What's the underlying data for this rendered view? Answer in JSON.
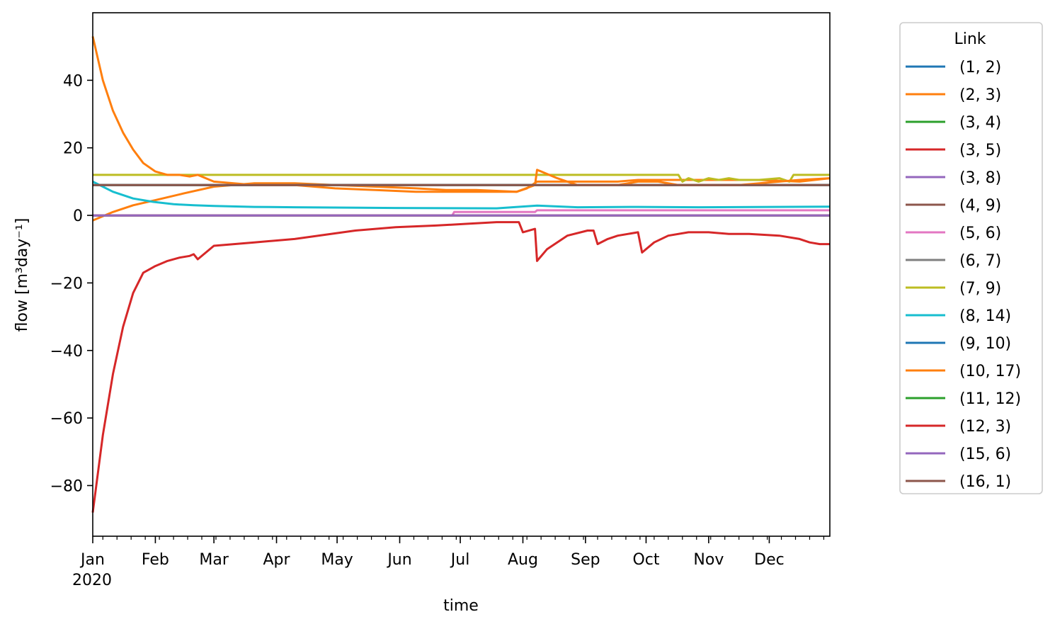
{
  "chart_data": {
    "type": "line",
    "title": "",
    "xlabel": "time",
    "ylabel": "flow [m³day⁻¹]",
    "xlim": [
      0,
      365
    ],
    "ylim": [
      -95,
      60
    ],
    "yticks": [
      40,
      20,
      0,
      -20,
      -40,
      -60,
      -80
    ],
    "ytick_labels": [
      "40",
      "20",
      "0",
      "−20",
      "−40",
      "−60",
      "−80"
    ],
    "xticks": [
      0,
      31,
      60,
      91,
      121,
      152,
      182,
      213,
      244,
      274,
      305,
      335
    ],
    "xtick_labels": [
      "Jan",
      "Feb",
      "Mar",
      "Apr",
      "May",
      "Jun",
      "Jul",
      "Aug",
      "Sep",
      "Oct",
      "Nov",
      "Dec"
    ],
    "x_year_label": "2020",
    "legend": {
      "title": "Link",
      "placement": "right-outside"
    },
    "series": [
      {
        "name": "(1, 2)",
        "color": "#1f77b4",
        "x": [
          0,
          365
        ],
        "y": [
          0,
          0
        ]
      },
      {
        "name": "(2, 3)",
        "color": "#ff7f0e",
        "x": [
          0,
          10,
          20,
          31,
          45,
          60,
          80,
          100,
          120,
          140,
          160,
          175,
          190,
          210,
          215,
          220,
          240,
          260,
          270,
          280,
          290,
          300,
          330,
          350,
          365
        ],
        "y": [
          -1.5,
          1,
          3,
          4.5,
          6.5,
          8.5,
          9.5,
          9.5,
          9,
          8.5,
          8,
          7.5,
          7.5,
          7,
          8,
          10,
          10,
          10,
          10.5,
          10.5,
          10.5,
          10.5,
          10.5,
          10,
          11
        ]
      },
      {
        "name": "(3, 4)",
        "color": "#2ca02c",
        "x": [
          0,
          365
        ],
        "y": [
          9,
          9
        ]
      },
      {
        "name": "(3, 5)",
        "color": "#d62728",
        "x": [
          0,
          5,
          10,
          15,
          20,
          25,
          31,
          37,
          43,
          48,
          50,
          52,
          60,
          80,
          100,
          130,
          150,
          170,
          185,
          200,
          211,
          213,
          219,
          220,
          225,
          235,
          245,
          248,
          250,
          255,
          260,
          270,
          272,
          274,
          278,
          285,
          295,
          305,
          315,
          325,
          340,
          350,
          355,
          360,
          365
        ],
        "y": [
          -88,
          -65,
          -47,
          -33,
          -23,
          -17,
          -15,
          -13.5,
          -12.5,
          -12,
          -11.5,
          -13,
          -9,
          -8,
          -7,
          -4.5,
          -3.5,
          -3,
          -2.5,
          -2,
          -2,
          -5,
          -4,
          -13.5,
          -10,
          -6,
          -4.5,
          -4.5,
          -8.5,
          -7,
          -6,
          -5,
          -11,
          -10,
          -8,
          -6,
          -5,
          -5,
          -5.5,
          -5.5,
          -6,
          -7,
          -8,
          -8.5,
          -8.5
        ]
      },
      {
        "name": "(3, 8)",
        "color": "#9467bd",
        "x": [
          0,
          365
        ],
        "y": [
          0,
          0
        ]
      },
      {
        "name": "(4, 9)",
        "color": "#8c564b",
        "x": [
          0,
          365
        ],
        "y": [
          9,
          9
        ]
      },
      {
        "name": "(5, 6)",
        "color": "#e377c2",
        "x": [
          0,
          178,
          179,
          219,
          220,
          365
        ],
        "y": [
          0,
          0,
          1,
          1,
          1.5,
          1.5
        ]
      },
      {
        "name": "(6, 7)",
        "color": "#7f7f7f",
        "x": [
          0,
          365
        ],
        "y": [
          0,
          0
        ]
      },
      {
        "name": "(7, 9)",
        "color": "#bcbd22",
        "x": [
          0,
          290,
          292,
          295,
          300,
          305,
          310,
          315,
          320,
          330,
          340,
          345,
          347,
          350,
          365
        ],
        "y": [
          12,
          12,
          10,
          11,
          10,
          11,
          10.5,
          11,
          10.5,
          10.5,
          11,
          10,
          12,
          12,
          12
        ]
      },
      {
        "name": "(8, 14)",
        "color": "#17becf",
        "x": [
          0,
          10,
          20,
          30,
          40,
          50,
          60,
          80,
          100,
          150,
          200,
          220,
          240,
          270,
          300,
          365
        ],
        "y": [
          10,
          7,
          5,
          4,
          3.3,
          3,
          2.8,
          2.5,
          2.4,
          2.2,
          2.1,
          2.9,
          2.4,
          2.5,
          2.4,
          2.6
        ]
      },
      {
        "name": "(9, 10)",
        "color": "#1f77b4",
        "x": [
          0,
          365
        ],
        "y": [
          9,
          9
        ]
      },
      {
        "name": "(10, 17)",
        "color": "#ff7f0e",
        "x": [
          0,
          5,
          10,
          15,
          20,
          25,
          31,
          37,
          43,
          48,
          52,
          60,
          80,
          100,
          120,
          140,
          160,
          175,
          190,
          210,
          219,
          220,
          230,
          240,
          260,
          270,
          280,
          290,
          300,
          320,
          340,
          350,
          365
        ],
        "y": [
          53,
          40,
          31,
          24.5,
          19.5,
          15.5,
          13,
          12,
          12,
          11.5,
          12,
          10,
          9,
          9,
          8,
          7.5,
          7,
          7,
          7,
          7,
          9,
          13.5,
          11,
          9,
          9,
          10,
          10,
          9,
          9,
          9,
          10,
          10.5,
          11
        ]
      },
      {
        "name": "(11, 12)",
        "color": "#2ca02c",
        "x": [
          0,
          365
        ],
        "y": [
          0,
          0
        ]
      },
      {
        "name": "(12, 3)",
        "color": "#d62728",
        "x": [
          0,
          365
        ],
        "y": [
          0,
          0
        ]
      },
      {
        "name": "(15, 6)",
        "color": "#9467bd",
        "x": [
          0,
          365
        ],
        "y": [
          0,
          0
        ]
      },
      {
        "name": "(16, 1)",
        "color": "#8c564b",
        "x": [
          0,
          365
        ],
        "y": [
          9,
          9
        ]
      }
    ]
  }
}
